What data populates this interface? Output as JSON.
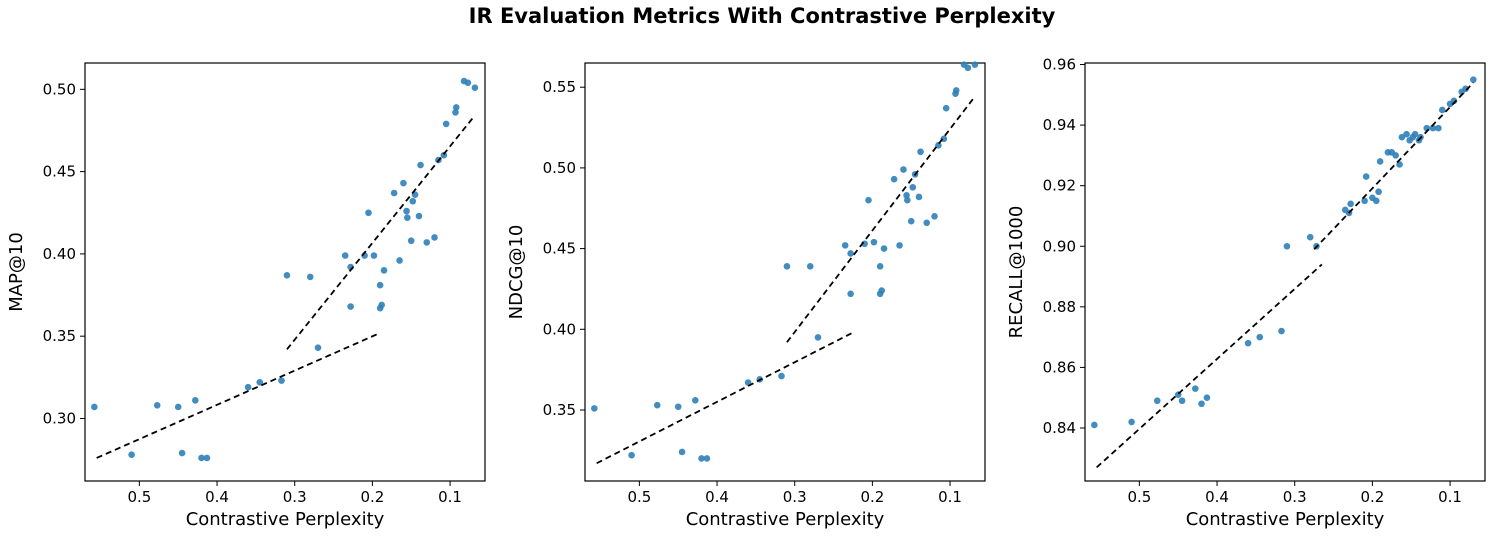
{
  "title": "IR Evaluation Metrics With Contrastive Perplexity",
  "colors": {
    "points": "#2f7fb8",
    "trend": "#000000"
  },
  "chart_data": [
    {
      "type": "scatter",
      "xlabel": "Contrastive Perplexity",
      "ylabel": "MAP@10",
      "xlim": [
        0.57,
        0.055
      ],
      "ylim": [
        0.262,
        0.516
      ],
      "x_reversed": true,
      "xticks": [
        "0.5",
        "0.4",
        "0.3",
        "0.2",
        "0.1"
      ],
      "xtick_values": [
        0.5,
        0.4,
        0.3,
        0.2,
        0.1
      ],
      "yticks": [
        "0.30",
        "0.35",
        "0.40",
        "0.45",
        "0.50"
      ],
      "ytick_values": [
        0.3,
        0.35,
        0.4,
        0.45,
        0.5
      ],
      "points": [
        [
          0.558,
          0.307
        ],
        [
          0.51,
          0.278
        ],
        [
          0.477,
          0.308
        ],
        [
          0.45,
          0.307
        ],
        [
          0.445,
          0.279
        ],
        [
          0.428,
          0.311
        ],
        [
          0.42,
          0.276
        ],
        [
          0.413,
          0.276
        ],
        [
          0.36,
          0.319
        ],
        [
          0.345,
          0.322
        ],
        [
          0.317,
          0.323
        ],
        [
          0.31,
          0.387
        ],
        [
          0.28,
          0.386
        ],
        [
          0.27,
          0.343
        ],
        [
          0.235,
          0.399
        ],
        [
          0.228,
          0.392
        ],
        [
          0.228,
          0.368
        ],
        [
          0.21,
          0.399
        ],
        [
          0.205,
          0.425
        ],
        [
          0.198,
          0.399
        ],
        [
          0.19,
          0.381
        ],
        [
          0.19,
          0.367
        ],
        [
          0.188,
          0.369
        ],
        [
          0.185,
          0.39
        ],
        [
          0.172,
          0.437
        ],
        [
          0.165,
          0.396
        ],
        [
          0.16,
          0.443
        ],
        [
          0.156,
          0.426
        ],
        [
          0.155,
          0.422
        ],
        [
          0.15,
          0.408
        ],
        [
          0.148,
          0.432
        ],
        [
          0.145,
          0.436
        ],
        [
          0.14,
          0.423
        ],
        [
          0.138,
          0.454
        ],
        [
          0.13,
          0.407
        ],
        [
          0.12,
          0.41
        ],
        [
          0.115,
          0.457
        ],
        [
          0.108,
          0.46
        ],
        [
          0.105,
          0.479
        ],
        [
          0.093,
          0.486
        ],
        [
          0.092,
          0.489
        ],
        [
          0.082,
          0.505
        ],
        [
          0.077,
          0.504
        ],
        [
          0.068,
          0.501
        ]
      ],
      "trend_lines": [
        {
          "x": [
            0.555,
            0.19
          ],
          "y": [
            0.276,
            0.352
          ]
        },
        {
          "x": [
            0.31,
            0.07
          ],
          "y": [
            0.342,
            0.483
          ]
        }
      ]
    },
    {
      "type": "scatter",
      "xlabel": "Contrastive Perplexity",
      "ylabel": "NDCG@10",
      "xlim": [
        0.57,
        0.055
      ],
      "ylim": [
        0.306,
        0.565
      ],
      "x_reversed": true,
      "xticks": [
        "0.5",
        "0.4",
        "0.3",
        "0.2",
        "0.1"
      ],
      "xtick_values": [
        0.5,
        0.4,
        0.3,
        0.2,
        0.1
      ],
      "yticks": [
        "0.35",
        "0.40",
        "0.45",
        "0.50",
        "0.55"
      ],
      "ytick_values": [
        0.35,
        0.4,
        0.45,
        0.5,
        0.55
      ],
      "points": [
        [
          0.558,
          0.351
        ],
        [
          0.51,
          0.322
        ],
        [
          0.477,
          0.353
        ],
        [
          0.45,
          0.352
        ],
        [
          0.445,
          0.324
        ],
        [
          0.428,
          0.356
        ],
        [
          0.42,
          0.32
        ],
        [
          0.413,
          0.32
        ],
        [
          0.36,
          0.367
        ],
        [
          0.345,
          0.369
        ],
        [
          0.317,
          0.371
        ],
        [
          0.31,
          0.439
        ],
        [
          0.28,
          0.439
        ],
        [
          0.27,
          0.395
        ],
        [
          0.235,
          0.452
        ],
        [
          0.228,
          0.447
        ],
        [
          0.228,
          0.422
        ],
        [
          0.21,
          0.453
        ],
        [
          0.205,
          0.48
        ],
        [
          0.198,
          0.454
        ],
        [
          0.19,
          0.439
        ],
        [
          0.19,
          0.422
        ],
        [
          0.188,
          0.424
        ],
        [
          0.185,
          0.45
        ],
        [
          0.172,
          0.493
        ],
        [
          0.165,
          0.452
        ],
        [
          0.16,
          0.499
        ],
        [
          0.156,
          0.483
        ],
        [
          0.155,
          0.48
        ],
        [
          0.15,
          0.467
        ],
        [
          0.148,
          0.488
        ],
        [
          0.145,
          0.496
        ],
        [
          0.14,
          0.482
        ],
        [
          0.138,
          0.51
        ],
        [
          0.13,
          0.466
        ],
        [
          0.12,
          0.47
        ],
        [
          0.115,
          0.514
        ],
        [
          0.108,
          0.518
        ],
        [
          0.105,
          0.537
        ],
        [
          0.093,
          0.546
        ],
        [
          0.092,
          0.548
        ],
        [
          0.082,
          0.564
        ],
        [
          0.077,
          0.562
        ],
        [
          0.068,
          0.564
        ]
      ],
      "trend_lines": [
        {
          "x": [
            0.555,
            0.225
          ],
          "y": [
            0.317,
            0.398
          ]
        },
        {
          "x": [
            0.31,
            0.07
          ],
          "y": [
            0.392,
            0.543
          ]
        }
      ]
    },
    {
      "type": "scatter",
      "xlabel": "Contrastive Perplexity",
      "ylabel": "RECALL@1000",
      "xlim": [
        0.57,
        0.055
      ],
      "ylim": [
        0.8225,
        0.9605
      ],
      "x_reversed": true,
      "xticks": [
        "0.5",
        "0.4",
        "0.3",
        "0.2",
        "0.1"
      ],
      "xtick_values": [
        0.5,
        0.4,
        0.3,
        0.2,
        0.1
      ],
      "yticks": [
        "0.84",
        "0.86",
        "0.88",
        "0.90",
        "0.92",
        "0.94",
        "0.96"
      ],
      "ytick_values": [
        0.84,
        0.86,
        0.88,
        0.9,
        0.92,
        0.94,
        0.96
      ],
      "points": [
        [
          0.558,
          0.841
        ],
        [
          0.51,
          0.842
        ],
        [
          0.477,
          0.849
        ],
        [
          0.45,
          0.851
        ],
        [
          0.445,
          0.849
        ],
        [
          0.428,
          0.853
        ],
        [
          0.42,
          0.848
        ],
        [
          0.413,
          0.85
        ],
        [
          0.36,
          0.868
        ],
        [
          0.345,
          0.87
        ],
        [
          0.317,
          0.872
        ],
        [
          0.31,
          0.9
        ],
        [
          0.28,
          0.903
        ],
        [
          0.272,
          0.9
        ],
        [
          0.235,
          0.912
        ],
        [
          0.23,
          0.911
        ],
        [
          0.228,
          0.914
        ],
        [
          0.21,
          0.915
        ],
        [
          0.208,
          0.923
        ],
        [
          0.2,
          0.916
        ],
        [
          0.195,
          0.915
        ],
        [
          0.192,
          0.918
        ],
        [
          0.19,
          0.928
        ],
        [
          0.18,
          0.931
        ],
        [
          0.175,
          0.931
        ],
        [
          0.17,
          0.93
        ],
        [
          0.165,
          0.927
        ],
        [
          0.162,
          0.936
        ],
        [
          0.156,
          0.937
        ],
        [
          0.152,
          0.935
        ],
        [
          0.148,
          0.936
        ],
        [
          0.145,
          0.937
        ],
        [
          0.14,
          0.935
        ],
        [
          0.138,
          0.936
        ],
        [
          0.13,
          0.939
        ],
        [
          0.122,
          0.939
        ],
        [
          0.115,
          0.939
        ],
        [
          0.11,
          0.945
        ],
        [
          0.1,
          0.947
        ],
        [
          0.095,
          0.948
        ],
        [
          0.085,
          0.951
        ],
        [
          0.08,
          0.952
        ],
        [
          0.07,
          0.955
        ]
      ],
      "trend_lines": [
        {
          "x": [
            0.555,
            0.265
          ],
          "y": [
            0.827,
            0.894
          ]
        },
        {
          "x": [
            0.275,
            0.07
          ],
          "y": [
            0.899,
            0.954
          ]
        }
      ]
    }
  ]
}
